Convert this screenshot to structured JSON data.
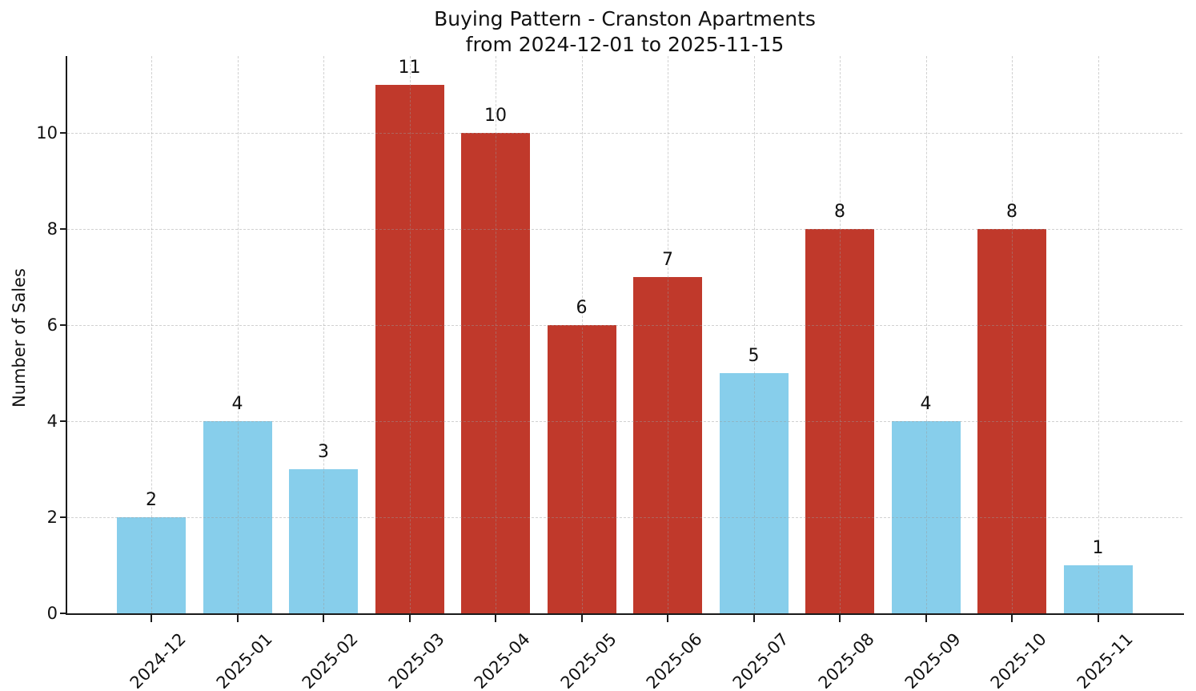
{
  "title": {
    "line1": "Buying Pattern - Cranston Apartments",
    "line2": "from 2024-12-01 to 2025-11-15"
  },
  "chart_data": {
    "type": "bar",
    "title": "Buying Pattern - Cranston Apartments from 2024-12-01 to 2025-11-15",
    "xlabel": "",
    "ylabel": "Number of Sales",
    "categories": [
      "2024-12",
      "2025-01",
      "2025-02",
      "2025-03",
      "2025-04",
      "2025-05",
      "2025-06",
      "2025-07",
      "2025-08",
      "2025-09",
      "2025-10",
      "2025-11"
    ],
    "values": [
      2,
      4,
      3,
      11,
      10,
      6,
      7,
      5,
      8,
      4,
      8,
      1
    ],
    "value_labels": [
      "2",
      "4",
      "3",
      "11",
      "10",
      "6",
      "7",
      "5",
      "8",
      "4",
      "8",
      "1"
    ],
    "bar_colors": [
      "#87CEEB",
      "#87CEEB",
      "#87CEEB",
      "#C0392B",
      "#C0392B",
      "#C0392B",
      "#C0392B",
      "#87CEEB",
      "#C0392B",
      "#87CEEB",
      "#C0392B",
      "#87CEEB"
    ],
    "palette": {
      "low_color": "#87CEEB",
      "high_color": "#C0392B"
    },
    "yticks": [
      0,
      2,
      4,
      6,
      8,
      10
    ],
    "ylim": [
      0,
      11.6
    ],
    "grid": "dashed, horizontal and vertical, drawn over bars",
    "legend": "none",
    "x_tick_rotation_deg": 45
  }
}
